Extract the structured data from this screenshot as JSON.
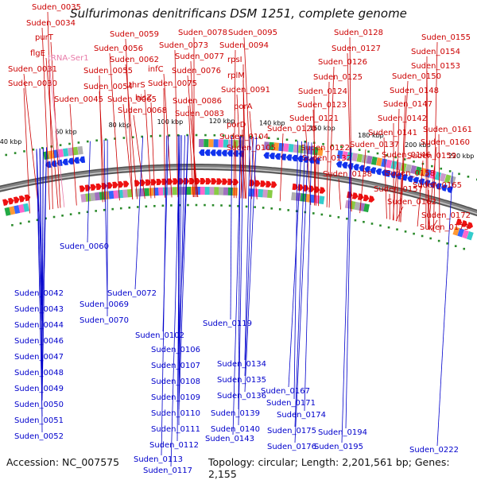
{
  "title": "Sulfurimonas denitrificans DSM 1251, complete genome",
  "footer": {
    "accession": "Accession: NC_007575",
    "topology": "Topology: circular; Length: 2,201,561 bp; Genes: 2,155"
  },
  "colors": {
    "forward_label": "#cc0000",
    "reverse_label": "#0000cc",
    "rna_label": "#e87aa8",
    "forward_gene": "#ee1111",
    "reverse_gene": "#1133ee",
    "backbone": "#808080",
    "tick_dots": "#2a8a2a"
  },
  "tick_labels": [
    "40 kbp",
    "60 kbp",
    "80 kbp",
    "100 kbp",
    "120 kbp",
    "140 kbp",
    "160 kbp",
    "180 kbp",
    "200 kbp",
    "220 kbp"
  ],
  "labels_forward": [
    "Suden_0035",
    "Suden_0034",
    "purT",
    "flgE",
    "Suden_0031",
    "Suden_0030",
    "Suden_0045",
    "Suden_0059",
    "Suden_0056",
    "Suden_0062",
    "Suden_0055",
    "Suden_0054",
    "thrS",
    "Suden_0065",
    "Suden_0068",
    "Suden_0078",
    "Suden_0073",
    "Suden_0077",
    "infC",
    "Suden_0076",
    "Suden_0075",
    "hisZ",
    "Suden_0086",
    "Suden_0083",
    "Suden_0095",
    "Suden_0094",
    "rpsI",
    "rplM",
    "Suden_0091",
    "porA",
    "porD",
    "Suden_0104",
    "Suden_0105",
    "Suden_0128",
    "Suden_0127",
    "Suden_0126",
    "Suden_0125",
    "Suden_0124",
    "Suden_0123",
    "Suden_0121",
    "Suden_0120",
    "Suden_0122",
    "Suden_0155",
    "Suden_0154",
    "Suden_0153",
    "Suden_0150",
    "Suden_0148",
    "Suden_0147",
    "Suden_0142",
    "Suden_0141",
    "Suden_0137",
    "Suden_0146",
    "Suden_0132",
    "Suden_0138",
    "Suden_0161",
    "Suden_0160",
    "Suden_0159",
    "Suden_0158",
    "Suden_0157",
    "Suden_0165",
    "Suden_0162",
    "Suden_0172",
    "Suden_0173"
  ],
  "labels_rna": [
    "tRNA-Ser1"
  ],
  "labels_reverse": [
    "Suden_0042",
    "Suden_0043",
    "Suden_0044",
    "Suden_0046",
    "Suden_0047",
    "Suden_0048",
    "Suden_0049",
    "Suden_0050",
    "Suden_0051",
    "Suden_0052",
    "Suden_0060",
    "Suden_0072",
    "Suden_0069",
    "Suden_0070",
    "Suden_0102",
    "Suden_0106",
    "Suden_0107",
    "Suden_0108",
    "Suden_0109",
    "Suden_0110",
    "Suden_0111",
    "Suden_0112",
    "Suden_0113",
    "Suden_0117",
    "Suden_0119",
    "Suden_0134",
    "Suden_0135",
    "Suden_0136",
    "Suden_0139",
    "Suden_0140",
    "Suden_0143",
    "Suden_0167",
    "Suden_0171",
    "Suden_0174",
    "Suden_0175",
    "Suden_0176",
    "Suden_0194",
    "Suden_0195",
    "Suden_0222"
  ]
}
